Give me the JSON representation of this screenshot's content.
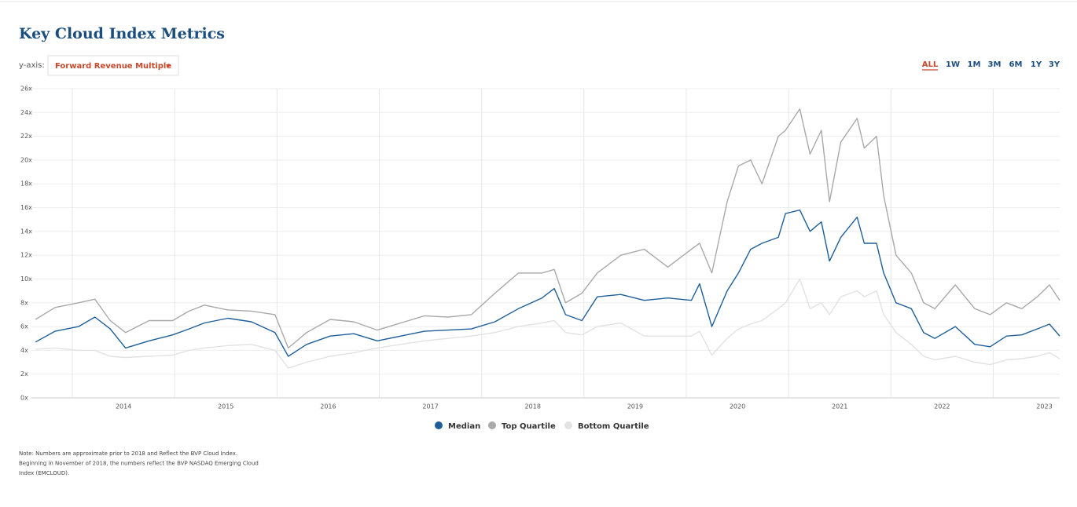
{
  "header": {
    "title": "Key Cloud Index Metrics"
  },
  "controls": {
    "yaxis_label": "y-axis:",
    "dropdown": "Forward Revenue Multiple",
    "ranges": [
      "ALL",
      "1W",
      "1M",
      "3M",
      "6M",
      "1Y",
      "3Y"
    ]
  },
  "chart_data": {
    "type": "line",
    "x": [
      2013.14,
      2013.33,
      2013.56,
      2013.72,
      2013.87,
      2014.02,
      2014.25,
      2014.48,
      2014.64,
      2014.79,
      2015.02,
      2015.25,
      2015.48,
      2015.61,
      2015.79,
      2016.02,
      2016.25,
      2016.48,
      2016.71,
      2016.94,
      2017.17,
      2017.4,
      2017.63,
      2017.86,
      2018.09,
      2018.21,
      2018.32,
      2018.48,
      2018.63,
      2018.86,
      2019.09,
      2019.32,
      2019.55,
      2019.63,
      2019.75,
      2019.9,
      2020.01,
      2020.13,
      2020.24,
      2020.4,
      2020.47,
      2020.61,
      2020.71,
      2020.82,
      2020.9,
      2021.01,
      2021.17,
      2021.24,
      2021.36,
      2021.43,
      2021.55,
      2021.7,
      2021.82,
      2021.93,
      2022.13,
      2022.32,
      2022.47,
      2022.63,
      2022.78,
      2022.93,
      2023.05,
      2023.15
    ],
    "series": [
      {
        "name": "Median",
        "color": "#1f5f99",
        "values": [
          4.7,
          5.6,
          6.0,
          6.8,
          5.8,
          4.2,
          4.8,
          5.3,
          5.8,
          6.3,
          6.7,
          6.4,
          5.5,
          3.5,
          4.5,
          5.2,
          5.4,
          4.8,
          5.2,
          5.6,
          5.7,
          5.8,
          6.4,
          7.5,
          8.4,
          9.2,
          7.0,
          6.5,
          8.5,
          8.7,
          8.2,
          8.4,
          8.2,
          9.6,
          6.0,
          9.0,
          10.5,
          12.5,
          13.0,
          13.5,
          15.5,
          15.8,
          14.0,
          14.8,
          11.5,
          13.5,
          15.2,
          13.0,
          13.0,
          10.5,
          8.0,
          7.5,
          5.5,
          5.0,
          6.0,
          4.5,
          4.3,
          5.2,
          5.3,
          5.8,
          6.2,
          5.2
        ]
      },
      {
        "name": "Top Quartile",
        "color": "#a9a9ab",
        "values": [
          6.6,
          7.6,
          8.0,
          8.3,
          6.5,
          5.5,
          6.5,
          6.5,
          7.3,
          7.8,
          7.4,
          7.3,
          7.0,
          4.2,
          5.5,
          6.6,
          6.4,
          5.7,
          6.3,
          6.9,
          6.8,
          7.0,
          8.8,
          10.5,
          10.5,
          10.8,
          8.0,
          8.8,
          10.5,
          12.0,
          12.5,
          11.0,
          12.5,
          13.0,
          10.5,
          16.5,
          19.5,
          20.0,
          18.0,
          22.0,
          22.5,
          24.3,
          20.5,
          22.5,
          16.5,
          21.5,
          23.5,
          21.0,
          22.0,
          17.0,
          12.0,
          10.5,
          8.0,
          7.5,
          9.5,
          7.5,
          7.0,
          8.0,
          7.5,
          8.5,
          9.5,
          8.2
        ]
      },
      {
        "name": "Bottom Quartile",
        "color": "#e2e2e2",
        "values": [
          4.1,
          4.2,
          4.0,
          4.0,
          3.5,
          3.4,
          3.5,
          3.6,
          4.0,
          4.2,
          4.4,
          4.5,
          4.0,
          2.5,
          3.0,
          3.5,
          3.8,
          4.2,
          4.5,
          4.8,
          5.0,
          5.2,
          5.5,
          6.0,
          6.3,
          6.5,
          5.5,
          5.3,
          6.0,
          6.3,
          5.2,
          5.2,
          5.2,
          5.6,
          3.6,
          5.0,
          5.8,
          6.2,
          6.5,
          7.5,
          8.0,
          10.0,
          7.5,
          8.0,
          7.0,
          8.5,
          9.0,
          8.5,
          9.0,
          7.0,
          5.5,
          4.5,
          3.5,
          3.2,
          3.5,
          3.0,
          2.8,
          3.2,
          3.3,
          3.5,
          3.8,
          3.3
        ]
      }
    ],
    "xlim": [
      2013.1,
      2023.15
    ],
    "xticks": [
      2014,
      2015,
      2016,
      2017,
      2018,
      2019,
      2020,
      2021,
      2022,
      2023
    ],
    "ylim": [
      0,
      26
    ],
    "yticks": [
      {
        "value": 0,
        "label": "0x"
      },
      {
        "value": 2,
        "label": "2x"
      },
      {
        "value": 4,
        "label": "4x"
      },
      {
        "value": 6,
        "label": "6x"
      },
      {
        "value": 8,
        "label": "8x"
      },
      {
        "value": 10,
        "label": "10x"
      },
      {
        "value": 12,
        "label": "12x"
      },
      {
        "value": 14,
        "label": "14x"
      },
      {
        "value": 16,
        "label": "16x"
      },
      {
        "value": 18,
        "label": "18x"
      },
      {
        "value": 20,
        "label": "20x"
      },
      {
        "value": 22,
        "label": "22x"
      },
      {
        "value": 24,
        "label": "24x"
      },
      {
        "value": 26,
        "label": "26x"
      }
    ],
    "grid": true,
    "legend": "bottom"
  },
  "note": [
    "Note: Numbers are approximate prior to 2018 and Reflect the BVP Cloud Index.",
    "Beginning in November of 2018, the numbers reflect the BVP NASDAQ Emerging Cloud",
    "Index (EMCLOUD)."
  ]
}
